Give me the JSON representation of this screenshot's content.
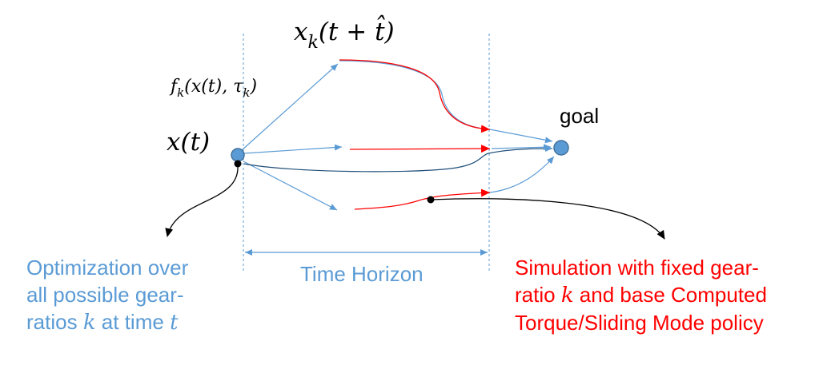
{
  "colors": {
    "blue": "#5b9bd5",
    "red": "#ff0000",
    "black": "#000000",
    "node_fill": "#5b9bd5",
    "node_stroke": "#41719c"
  },
  "labels": {
    "state_current": "x(t)",
    "state_future_base": "x",
    "state_future_sub": "k",
    "state_future_arg": "(t + t̂)",
    "dynamics_base": "f",
    "dynamics_sub": "k",
    "dynamics_arg_1": "(x(t), τ",
    "dynamics_arg_sub": "k",
    "dynamics_arg_2": ")",
    "goal": "goal",
    "time_horizon": "Time Horizon"
  },
  "left_note": {
    "line1": "Optimization over",
    "line2": "all possible gear-",
    "line3_prefix": "ratios ",
    "line3_var": "k",
    "line3_mid": " at time ",
    "line3_var2": "t"
  },
  "right_note": {
    "line1": "Simulation with fixed gear-",
    "line2_prefix": "ratio ",
    "line2_var": "k",
    "line2_suffix": " and base Computed",
    "line3": "Torque/Sliding Mode policy"
  }
}
